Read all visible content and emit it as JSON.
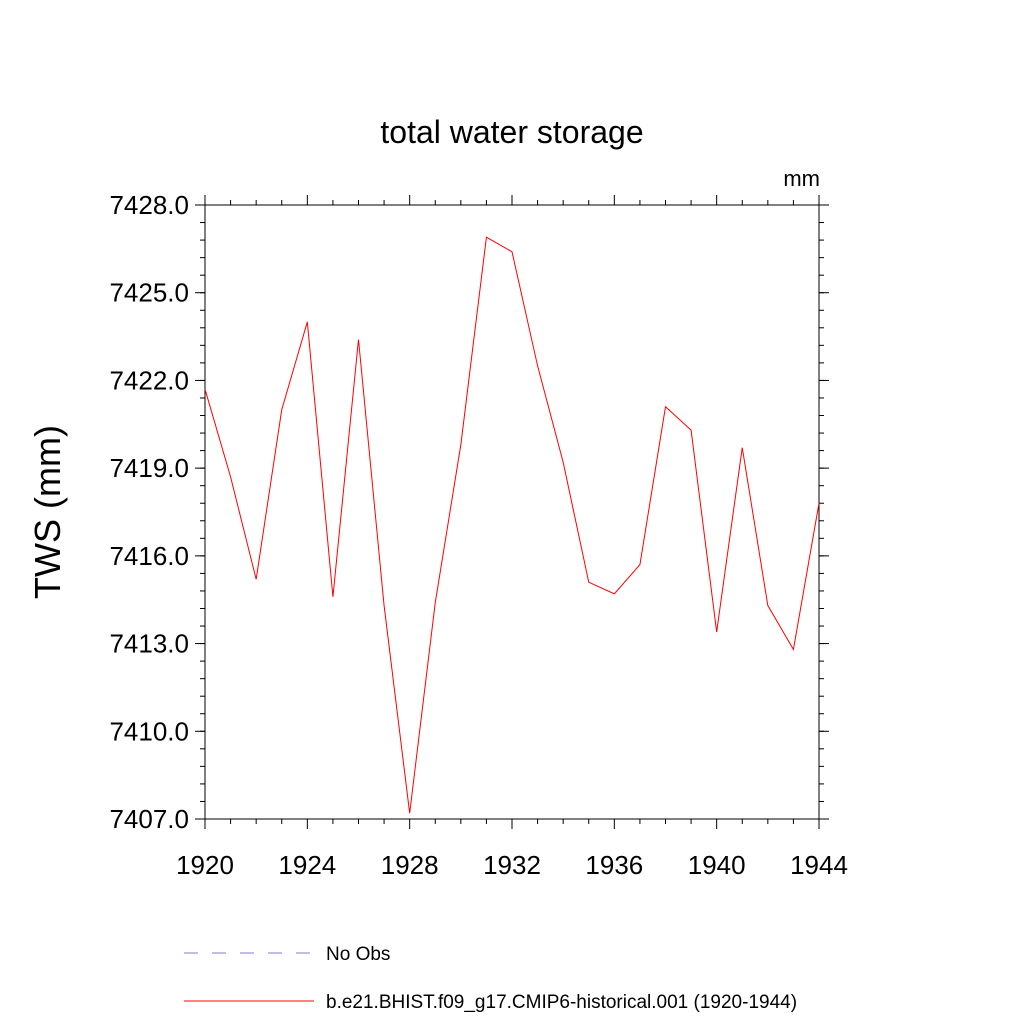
{
  "chart_data": {
    "type": "line",
    "title": "total water storage",
    "units_label": "mm",
    "ylabel": "TWS  (mm)",
    "xlabel": "",
    "xlim": [
      1920,
      1944
    ],
    "ylim": [
      7407.0,
      7428.0
    ],
    "x_ticks": [
      1920,
      1924,
      1928,
      1932,
      1936,
      1940,
      1944
    ],
    "x_tick_labels": [
      "1920",
      "1924",
      "1928",
      "1932",
      "1936",
      "1940",
      "1944"
    ],
    "y_ticks": [
      7407,
      7410,
      7413,
      7416,
      7419,
      7422,
      7425,
      7428
    ],
    "y_tick_labels": [
      "7407.0",
      "7410.0",
      "7413.0",
      "7416.0",
      "7419.0",
      "7422.0",
      "7425.0",
      "7428.0"
    ],
    "grid": false,
    "legend_position": "bottom",
    "series": [
      {
        "name": "No Obs",
        "color": "#7d7dd2",
        "dash": "dashed",
        "x": [],
        "values": []
      },
      {
        "name": "b.e21.BHIST.f09_g17.CMIP6-historical.001 (1920-1944)",
        "color": "#ff0000",
        "dash": "solid",
        "x": [
          1920,
          1921,
          1922,
          1923,
          1924,
          1925,
          1926,
          1927,
          1928,
          1929,
          1930,
          1931,
          1932,
          1933,
          1934,
          1935,
          1936,
          1937,
          1938,
          1939,
          1940,
          1941,
          1942,
          1943,
          1944
        ],
        "values": [
          7421.7,
          7418.7,
          7415.2,
          7421.0,
          7424.0,
          7414.6,
          7423.4,
          7414.3,
          7407.2,
          7414.4,
          7419.8,
          7426.9,
          7426.4,
          7422.5,
          7419.2,
          7415.1,
          7414.7,
          7415.7,
          7421.1,
          7420.3,
          7413.4,
          7419.7,
          7414.3,
          7412.8,
          7417.8
        ]
      }
    ]
  }
}
